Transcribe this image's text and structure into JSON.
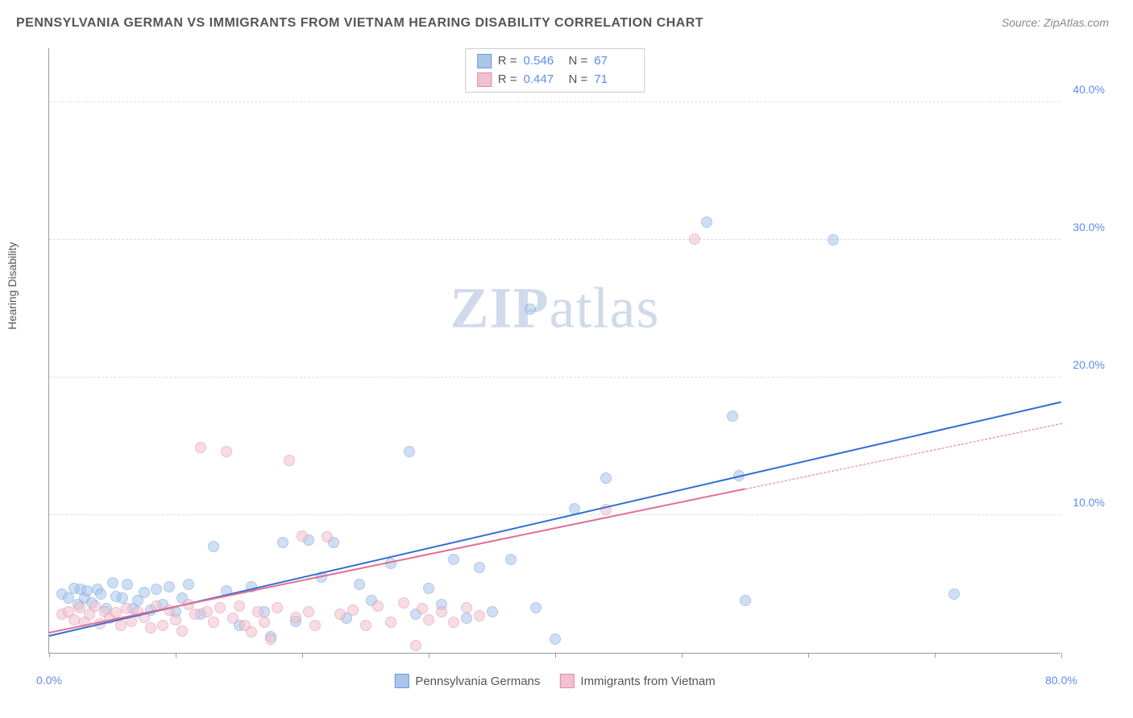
{
  "title": "PENNSYLVANIA GERMAN VS IMMIGRANTS FROM VIETNAM HEARING DISABILITY CORRELATION CHART",
  "source": "Source: ZipAtlas.com",
  "ylabel": "Hearing Disability",
  "watermark_a": "ZIP",
  "watermark_b": "atlas",
  "chart": {
    "type": "scatter",
    "xlim": [
      0,
      80
    ],
    "ylim": [
      0,
      44
    ],
    "yticks": [
      10,
      20,
      30,
      40
    ],
    "ytick_labels": [
      "10.0%",
      "20.0%",
      "30.0%",
      "40.0%"
    ],
    "xticks": [
      0,
      10,
      20,
      30,
      40,
      50,
      60,
      70,
      80
    ],
    "xtick_labels": {
      "0": "0.0%",
      "80": "80.0%"
    },
    "grid_color": "#dddddd",
    "axis_color": "#999999",
    "background_color": "#ffffff",
    "marker_radius": 7,
    "marker_opacity": 0.55,
    "series": [
      {
        "name": "Pennsylvania Germans",
        "color_fill": "#a9c5ea",
        "color_stroke": "#6f9bd8",
        "trend_color": "#2f6fd0",
        "trend": {
          "x0": 0,
          "y0": 1.2,
          "x1": 80,
          "y1": 18.2,
          "dash_after_x": null
        },
        "R": "0.546",
        "N": "67",
        "points": [
          [
            1.0,
            4.3
          ],
          [
            1.5,
            4.0
          ],
          [
            2.0,
            4.7
          ],
          [
            2.3,
            3.5
          ],
          [
            2.5,
            4.6
          ],
          [
            2.8,
            4.0
          ],
          [
            3.0,
            4.5
          ],
          [
            3.4,
            3.6
          ],
          [
            3.8,
            4.6
          ],
          [
            4.1,
            4.3
          ],
          [
            4.5,
            3.2
          ],
          [
            5.0,
            5.1
          ],
          [
            5.3,
            4.1
          ],
          [
            5.8,
            4.0
          ],
          [
            6.2,
            5.0
          ],
          [
            6.6,
            3.2
          ],
          [
            7.0,
            3.8
          ],
          [
            7.5,
            4.4
          ],
          [
            8.0,
            3.1
          ],
          [
            8.5,
            4.6
          ],
          [
            9.0,
            3.5
          ],
          [
            9.5,
            4.8
          ],
          [
            10.0,
            3.0
          ],
          [
            10.5,
            4.0
          ],
          [
            11.0,
            5.0
          ],
          [
            12.0,
            2.8
          ],
          [
            13.0,
            7.7
          ],
          [
            14.0,
            4.5
          ],
          [
            15.0,
            2.0
          ],
          [
            16.0,
            4.8
          ],
          [
            17.0,
            3.0
          ],
          [
            17.5,
            1.2
          ],
          [
            18.5,
            8.0
          ],
          [
            19.5,
            2.3
          ],
          [
            20.5,
            8.2
          ],
          [
            21.5,
            5.5
          ],
          [
            22.5,
            8.0
          ],
          [
            23.5,
            2.5
          ],
          [
            24.5,
            5.0
          ],
          [
            25.5,
            3.8
          ],
          [
            27.0,
            6.5
          ],
          [
            28.5,
            14.6
          ],
          [
            29.0,
            2.8
          ],
          [
            30.0,
            4.7
          ],
          [
            31.0,
            3.5
          ],
          [
            32.0,
            6.8
          ],
          [
            33.0,
            2.5
          ],
          [
            34.0,
            6.2
          ],
          [
            35.0,
            3.0
          ],
          [
            36.5,
            6.8
          ],
          [
            38.0,
            25.0
          ],
          [
            38.5,
            3.3
          ],
          [
            40.0,
            1.0
          ],
          [
            41.5,
            10.5
          ],
          [
            44.0,
            12.7
          ],
          [
            52.0,
            31.3
          ],
          [
            54.0,
            17.2
          ],
          [
            54.5,
            12.9
          ],
          [
            55.0,
            3.8
          ],
          [
            62.0,
            30.0
          ],
          [
            71.5,
            4.3
          ]
        ]
      },
      {
        "name": "Immigrants from Vietnam",
        "color_fill": "#f2c1cf",
        "color_stroke": "#e08aa3",
        "trend_color": "#e36f93",
        "trend": {
          "x0": 0,
          "y0": 1.4,
          "x1": 80,
          "y1": 16.6,
          "dash_after_x": 55
        },
        "R": "0.447",
        "N": "71",
        "points": [
          [
            1.0,
            2.8
          ],
          [
            1.5,
            3.0
          ],
          [
            2.0,
            2.4
          ],
          [
            2.4,
            3.3
          ],
          [
            2.8,
            2.2
          ],
          [
            3.2,
            2.8
          ],
          [
            3.6,
            3.4
          ],
          [
            4.0,
            2.1
          ],
          [
            4.4,
            3.0
          ],
          [
            4.8,
            2.5
          ],
          [
            5.3,
            2.9
          ],
          [
            5.7,
            2.0
          ],
          [
            6.1,
            3.2
          ],
          [
            6.5,
            2.3
          ],
          [
            7.0,
            3.0
          ],
          [
            7.5,
            2.6
          ],
          [
            8.0,
            1.8
          ],
          [
            8.5,
            3.4
          ],
          [
            9.0,
            2.0
          ],
          [
            9.5,
            3.1
          ],
          [
            10.0,
            2.4
          ],
          [
            10.5,
            1.6
          ],
          [
            11.0,
            3.5
          ],
          [
            11.5,
            2.8
          ],
          [
            12.0,
            14.9
          ],
          [
            12.5,
            3.0
          ],
          [
            13.0,
            2.2
          ],
          [
            13.5,
            3.3
          ],
          [
            14.0,
            14.6
          ],
          [
            14.5,
            2.5
          ],
          [
            15.0,
            3.4
          ],
          [
            15.5,
            2.0
          ],
          [
            16.0,
            1.5
          ],
          [
            16.5,
            3.0
          ],
          [
            17.0,
            2.2
          ],
          [
            17.5,
            1.0
          ],
          [
            18.0,
            3.3
          ],
          [
            19.0,
            14.0
          ],
          [
            19.5,
            2.6
          ],
          [
            20.0,
            8.5
          ],
          [
            20.5,
            3.0
          ],
          [
            21.0,
            2.0
          ],
          [
            22.0,
            8.4
          ],
          [
            23.0,
            2.8
          ],
          [
            24.0,
            3.1
          ],
          [
            25.0,
            2.0
          ],
          [
            26.0,
            3.4
          ],
          [
            27.0,
            2.2
          ],
          [
            28.0,
            3.6
          ],
          [
            29.0,
            0.5
          ],
          [
            29.5,
            3.2
          ],
          [
            30.0,
            2.4
          ],
          [
            31.0,
            3.0
          ],
          [
            32.0,
            2.2
          ],
          [
            33.0,
            3.3
          ],
          [
            34.0,
            2.7
          ],
          [
            44.0,
            10.4
          ],
          [
            51.0,
            30.1
          ]
        ]
      }
    ]
  },
  "stats_legend_labels": {
    "r_prefix": "R =",
    "n_prefix": "N ="
  },
  "bottom_legend": [
    "Pennsylvania Germans",
    "Immigrants from Vietnam"
  ]
}
